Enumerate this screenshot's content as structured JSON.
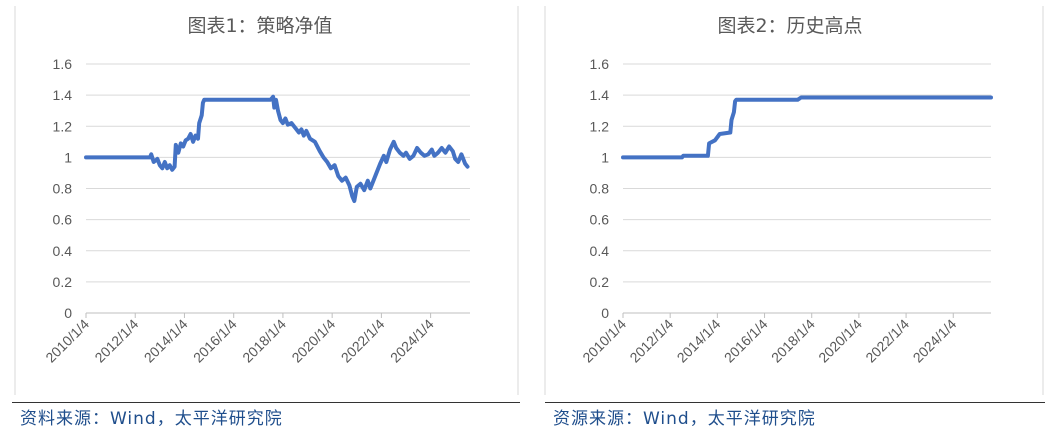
{
  "source_left": "资料来源：Wind，太平洋研究院",
  "source_right": "资源来源：Wind，太平洋研究院",
  "colors": {
    "line": "#4472C4",
    "axis_text": "#595959",
    "grid": "#D9D9D9",
    "title": "#595959"
  },
  "chart_data": [
    {
      "type": "line",
      "title": "图表1：策略净值",
      "ylim": [
        0,
        1.6
      ],
      "yticks": [
        "0",
        "0.2",
        "0.4",
        "0.6",
        "0.8",
        "1",
        "1.2",
        "1.4",
        "1.6"
      ],
      "xticks": [
        "2010/1/4",
        "2012/1/4",
        "2014/1/4",
        "2016/1/4",
        "2018/1/4",
        "2020/1/4",
        "2022/1/4",
        "2024/1/4"
      ],
      "xlim": [
        2010.0,
        2025.6
      ],
      "grid": "horizontal",
      "series": [
        {
          "values": [
            [
              2010.0,
              1.0
            ],
            [
              2012.6,
              1.0
            ],
            [
              2012.65,
              1.02
            ],
            [
              2012.75,
              0.97
            ],
            [
              2012.9,
              0.99
            ],
            [
              2013.0,
              0.95
            ],
            [
              2013.1,
              0.93
            ],
            [
              2013.2,
              0.97
            ],
            [
              2013.3,
              0.93
            ],
            [
              2013.4,
              0.95
            ],
            [
              2013.5,
              0.92
            ],
            [
              2013.6,
              0.94
            ],
            [
              2013.65,
              1.08
            ],
            [
              2013.75,
              1.03
            ],
            [
              2013.85,
              1.09
            ],
            [
              2013.95,
              1.07
            ],
            [
              2014.05,
              1.11
            ],
            [
              2014.15,
              1.12
            ],
            [
              2014.25,
              1.15
            ],
            [
              2014.35,
              1.1
            ],
            [
              2014.45,
              1.14
            ],
            [
              2014.55,
              1.12
            ],
            [
              2014.6,
              1.22
            ],
            [
              2014.7,
              1.27
            ],
            [
              2014.75,
              1.35
            ],
            [
              2014.8,
              1.37
            ],
            [
              2017.5,
              1.37
            ],
            [
              2017.6,
              1.39
            ],
            [
              2017.65,
              1.32
            ],
            [
              2017.72,
              1.37
            ],
            [
              2017.8,
              1.3
            ],
            [
              2017.9,
              1.24
            ],
            [
              2018.0,
              1.22
            ],
            [
              2018.1,
              1.25
            ],
            [
              2018.2,
              1.21
            ],
            [
              2018.35,
              1.22
            ],
            [
              2018.5,
              1.19
            ],
            [
              2018.65,
              1.16
            ],
            [
              2018.75,
              1.18
            ],
            [
              2018.85,
              1.14
            ],
            [
              2018.95,
              1.17
            ],
            [
              2019.1,
              1.12
            ],
            [
              2019.3,
              1.1
            ],
            [
              2019.5,
              1.04
            ],
            [
              2019.65,
              1.0
            ],
            [
              2019.8,
              0.97
            ],
            [
              2019.95,
              0.93
            ],
            [
              2020.1,
              0.95
            ],
            [
              2020.25,
              0.88
            ],
            [
              2020.4,
              0.85
            ],
            [
              2020.55,
              0.87
            ],
            [
              2020.7,
              0.82
            ],
            [
              2020.82,
              0.75
            ],
            [
              2020.9,
              0.72
            ],
            [
              2021.0,
              0.81
            ],
            [
              2021.15,
              0.83
            ],
            [
              2021.3,
              0.79
            ],
            [
              2021.45,
              0.85
            ],
            [
              2021.55,
              0.8
            ],
            [
              2021.65,
              0.84
            ],
            [
              2021.8,
              0.9
            ],
            [
              2021.95,
              0.96
            ],
            [
              2022.1,
              1.01
            ],
            [
              2022.2,
              0.97
            ],
            [
              2022.35,
              1.05
            ],
            [
              2022.5,
              1.1
            ],
            [
              2022.6,
              1.06
            ],
            [
              2022.75,
              1.03
            ],
            [
              2022.9,
              1.01
            ],
            [
              2023.0,
              1.03
            ],
            [
              2023.15,
              0.99
            ],
            [
              2023.3,
              1.01
            ],
            [
              2023.45,
              1.06
            ],
            [
              2023.6,
              1.03
            ],
            [
              2023.75,
              1.01
            ],
            [
              2023.9,
              1.02
            ],
            [
              2024.05,
              1.05
            ],
            [
              2024.15,
              1.01
            ],
            [
              2024.3,
              1.03
            ],
            [
              2024.45,
              1.06
            ],
            [
              2024.6,
              1.03
            ],
            [
              2024.75,
              1.07
            ],
            [
              2024.9,
              1.04
            ],
            [
              2025.0,
              0.99
            ],
            [
              2025.12,
              0.97
            ],
            [
              2025.25,
              1.02
            ],
            [
              2025.4,
              0.96
            ],
            [
              2025.5,
              0.94
            ]
          ]
        }
      ]
    },
    {
      "type": "line",
      "title": "图表2：历史高点",
      "ylim": [
        0,
        1.6
      ],
      "yticks": [
        "0",
        "0.2",
        "0.4",
        "0.6",
        "0.8",
        "1",
        "1.2",
        "1.4",
        "1.6"
      ],
      "xticks": [
        "2010/1/4",
        "2012/1/4",
        "2014/1/4",
        "2016/1/4",
        "2018/1/4",
        "2020/1/4",
        "2022/1/4",
        "2024/1/4"
      ],
      "xlim": [
        2010.0,
        2025.6
      ],
      "grid": "horizontal",
      "series": [
        {
          "values": [
            [
              2010.0,
              1.0
            ],
            [
              2012.5,
              1.0
            ],
            [
              2012.55,
              1.01
            ],
            [
              2013.6,
              1.01
            ],
            [
              2013.65,
              1.09
            ],
            [
              2013.9,
              1.11
            ],
            [
              2014.1,
              1.15
            ],
            [
              2014.55,
              1.16
            ],
            [
              2014.6,
              1.24
            ],
            [
              2014.7,
              1.29
            ],
            [
              2014.75,
              1.36
            ],
            [
              2014.8,
              1.37
            ],
            [
              2017.4,
              1.37
            ],
            [
              2017.55,
              1.385
            ],
            [
              2025.6,
              1.385
            ]
          ]
        }
      ]
    }
  ]
}
